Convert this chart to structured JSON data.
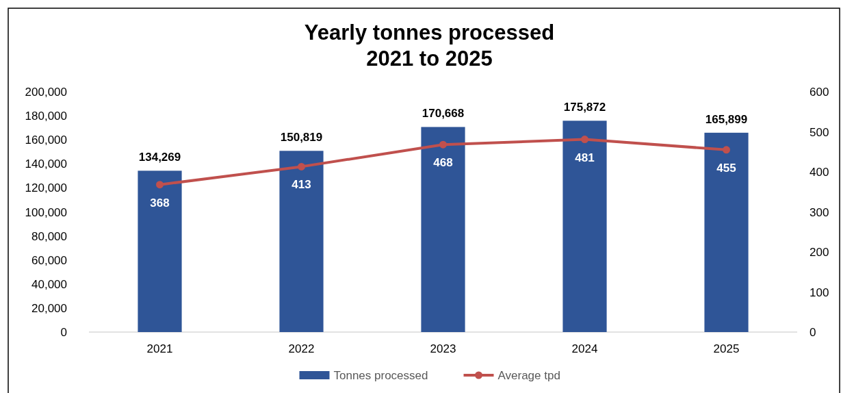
{
  "chart_data": {
    "type": "bar",
    "title": "Yearly tonnes processed\n2021 to 2025",
    "categories": [
      "2021",
      "2022",
      "2023",
      "2024",
      "2025"
    ],
    "series": [
      {
        "name": "Tonnes processed",
        "color": "#2f5597",
        "values": [
          134269,
          150819,
          170668,
          175872,
          165899
        ],
        "value_labels": [
          "134,269",
          "150,819",
          "170,668",
          "175,872",
          "165,899"
        ]
      },
      {
        "name": "Average tpd",
        "type": "line",
        "axis": "y2",
        "color": "#c0504d",
        "marker": "circle",
        "values": [
          368,
          413,
          468,
          481,
          455
        ],
        "value_labels": [
          "368",
          "413",
          "468",
          "481",
          "455"
        ]
      }
    ],
    "legend": "bottom",
    "ylim": [
      0,
      200000
    ],
    "yticks": [
      {
        "value": 0,
        "label": "0"
      },
      {
        "value": 20000,
        "label": "20,000"
      },
      {
        "value": 40000,
        "label": "40,000"
      },
      {
        "value": 60000,
        "label": "60,000"
      },
      {
        "value": 80000,
        "label": "80,000"
      },
      {
        "value": 100000,
        "label": "100,000"
      },
      {
        "value": 120000,
        "label": "120,000"
      },
      {
        "value": 140000,
        "label": "140,000"
      },
      {
        "value": 160000,
        "label": "160,000"
      },
      {
        "value": 180000,
        "label": "180,000"
      },
      {
        "value": 200000,
        "label": "200,000"
      }
    ],
    "y2lim": [
      0,
      600
    ],
    "y2ticks": [
      0,
      100,
      200,
      300,
      400,
      500,
      600
    ]
  }
}
